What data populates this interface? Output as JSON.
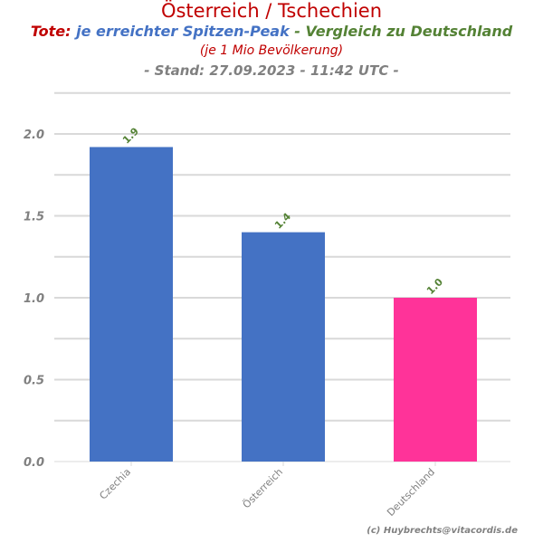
{
  "header": {
    "title": "Österreich / Tschechien",
    "sub_a": "Tote:",
    "sub_b": " je erreichter Spitzen-Peak",
    "sub_c": " - Vergleich zu Deutschland",
    "population": "(je 1 Mio Bevölkerung)",
    "stand": "- Stand: 27.09.2023 - 11:42 UTC -"
  },
  "footer": {
    "copyright": "(c) Huybrechts@vitacordis.de"
  },
  "colors": {
    "red": "#c00000",
    "blue": "#4472c4",
    "green": "#548235",
    "pink": "#ff3399",
    "grey": "#808080"
  },
  "chart_data": {
    "type": "bar",
    "categories": [
      "Czechia",
      "Österreich",
      "Deutschland"
    ],
    "values": [
      1.92,
      1.4,
      1.0
    ],
    "labels": [
      "1.9",
      "1.4",
      "1.0"
    ],
    "bar_colors": [
      "#4472c4",
      "#4472c4",
      "#ff3399"
    ],
    "ylim": [
      0,
      2.25
    ],
    "yticks": [
      "0.0",
      "0.5",
      "1.0",
      "1.5",
      "2.0"
    ],
    "grid": true,
    "xlabel": "",
    "ylabel": ""
  }
}
